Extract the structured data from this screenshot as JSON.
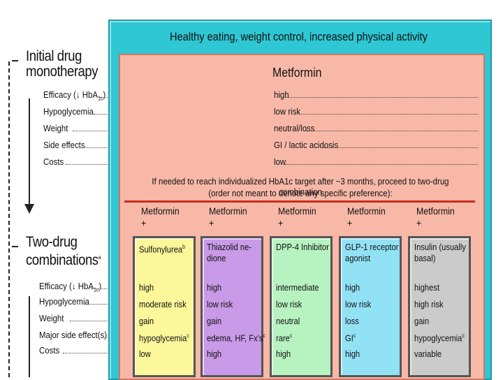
{
  "outer_title": "Healthy eating, weight control, increased physical activity",
  "left_panel": {
    "mono_heading": [
      "Initial drug",
      "monotherapy"
    ],
    "mono_rows": [
      "Efficacy (↓ HbA1c)",
      "Hypoglycemia",
      "Weight",
      "Side effects",
      "Costs"
    ],
    "combo_heading": [
      "Two-drug",
      "combinations"
    ],
    "combo_superscript": "a",
    "combo_rows": [
      "Efficacy (↓ HbA1c)",
      "Hypoglycemia",
      "Weight",
      "Major side effect(s)",
      "Costs"
    ]
  },
  "monotherapy": {
    "title": "Metformin",
    "values": [
      "high",
      "low risk",
      "neutral/loss",
      "GI / lactic acidosis",
      "low"
    ]
  },
  "note": [
    "If needed to reach individualized HbA1c target after ~3 months, proceed to two-drug combination",
    "(order not meant to denote any specific preference):"
  ],
  "combinations": [
    {
      "plus": [
        "Metformin",
        "+"
      ],
      "title": [
        "Sulfonylurea",
        ""
      ],
      "sup": "b",
      "color": "#fbf79a",
      "values": [
        "high",
        "moderate risk",
        "gain",
        "hypoglycemia",
        "low"
      ],
      "value_sups": [
        "",
        "",
        "",
        "c",
        ""
      ]
    },
    {
      "plus": [
        "Metformin",
        "+"
      ],
      "title": [
        "Thiazolid ne-",
        "dione"
      ],
      "sup": "",
      "color": "#c99ae8",
      "values": [
        "high",
        "low risk",
        "gain",
        "edema, HF, Fx's",
        "high"
      ],
      "value_sups": [
        "",
        "",
        "",
        "c",
        ""
      ]
    },
    {
      "plus": [
        "Metformin",
        "+"
      ],
      "title": [
        "DPP-4 Inhibitor",
        ""
      ],
      "sup": "",
      "color": "#b6f3c0",
      "values": [
        "intermediate",
        "low risk",
        "neutral",
        "rare",
        "high"
      ],
      "value_sups": [
        "",
        "",
        "",
        "c",
        ""
      ]
    },
    {
      "plus": [
        "Metformin",
        "+"
      ],
      "title": [
        "GLP-1 receptor",
        "agonist"
      ],
      "sup": "",
      "color": "#92e2f6",
      "values": [
        "high",
        "low risk",
        "loss",
        "GI",
        "high"
      ],
      "value_sups": [
        "",
        "",
        "",
        "c",
        ""
      ]
    },
    {
      "plus": [
        "Metformin",
        "+"
      ],
      "title": [
        "Insulin (usually",
        "basal)"
      ],
      "sup": "",
      "color": "#cbcbcb",
      "values": [
        "highest",
        "high risk",
        "gain",
        "hypoglycemia",
        "variable"
      ],
      "value_sups": [
        "",
        "",
        "",
        "c",
        ""
      ]
    }
  ],
  "colors": {
    "outer": "#2ec7d3",
    "inner": "#f8b8a8",
    "divider": "#c72d1c"
  }
}
